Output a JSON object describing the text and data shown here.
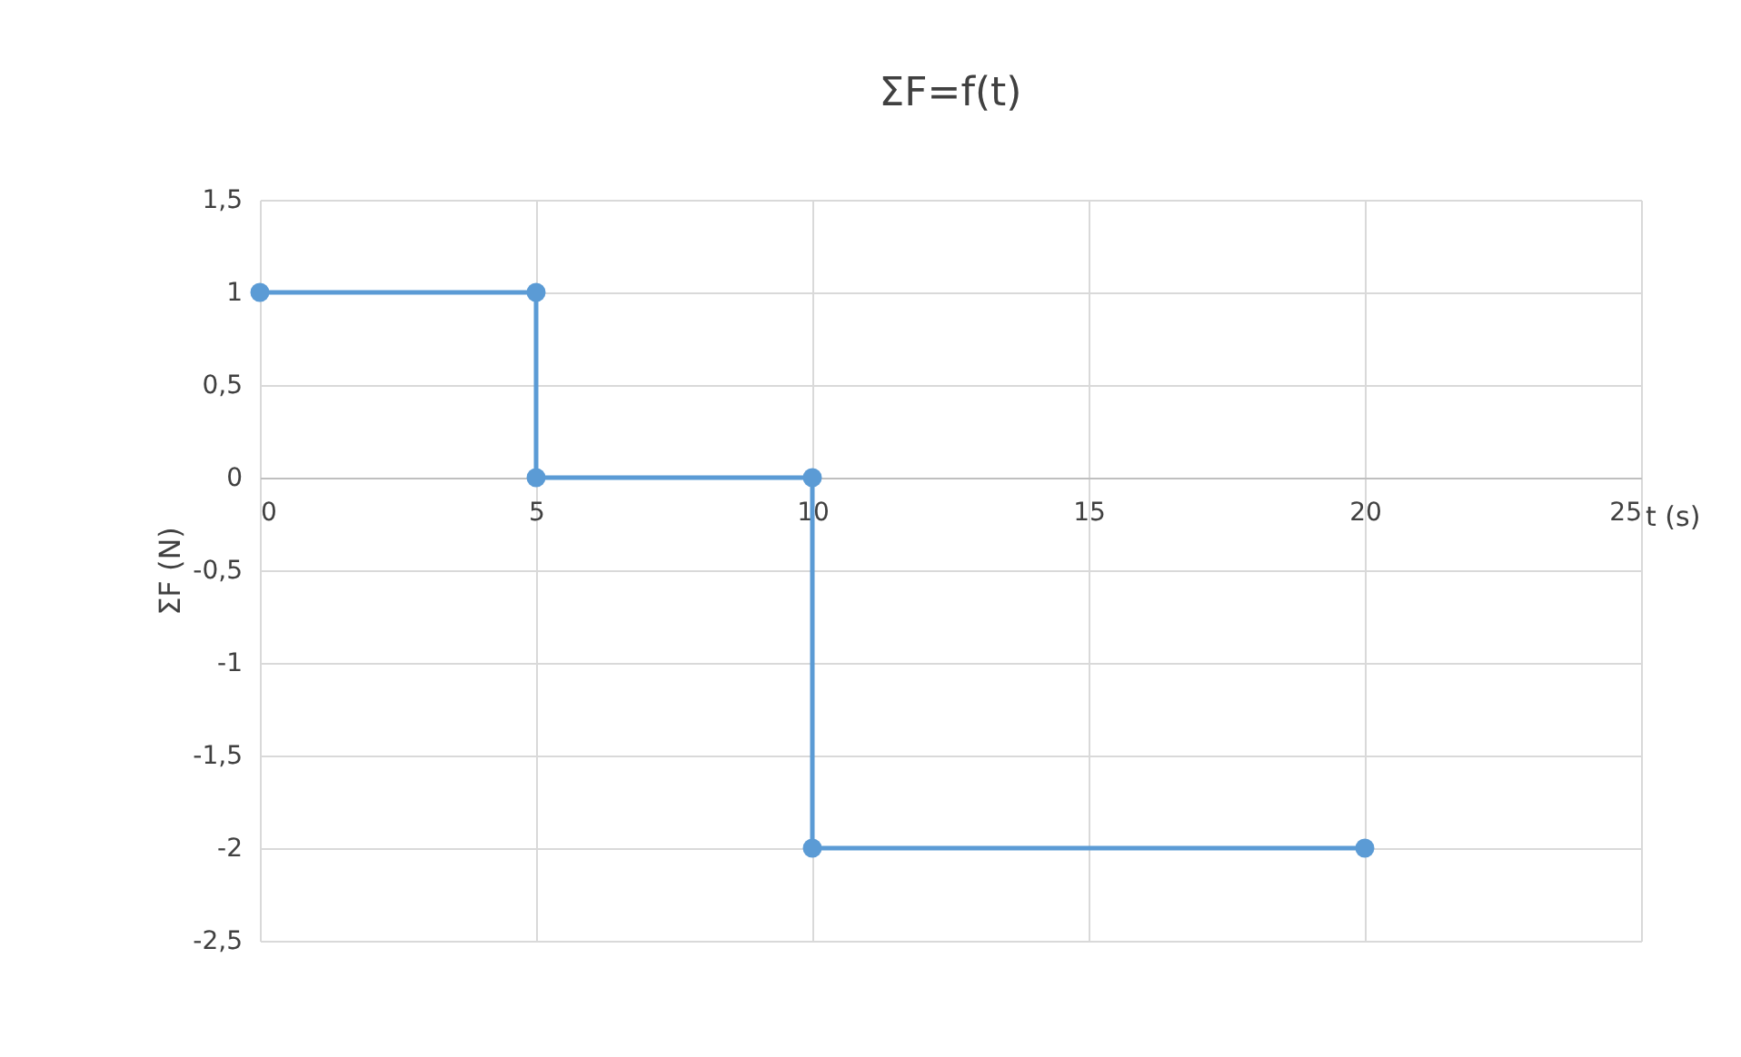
{
  "chart_data": {
    "type": "line",
    "title": "ΣF=f(t)",
    "xlabel": "t (s)",
    "ylabel": "ΣF (N)",
    "x": [
      0,
      5,
      5,
      10,
      10,
      20
    ],
    "series": [
      {
        "color": "#5b9bd5",
        "values": [
          1,
          1,
          0,
          0,
          -2,
          -2
        ]
      }
    ],
    "xlim": [
      0,
      25
    ],
    "xticks": [
      0,
      5,
      10,
      15,
      20,
      25
    ],
    "ylim": [
      -2.5,
      1.5
    ],
    "yticks": [
      {
        "value": -2.5,
        "label": "-2,5"
      },
      -2,
      {
        "value": -1.5,
        "label": "-1,5"
      },
      -1,
      {
        "value": -0.5,
        "label": "-0,5"
      },
      0,
      {
        "value": 0.5,
        "label": "0,5"
      },
      1,
      {
        "value": 1.5,
        "label": "1,5"
      }
    ],
    "grid": true,
    "marker": "circle",
    "line_style": "solid",
    "legend": false
  }
}
